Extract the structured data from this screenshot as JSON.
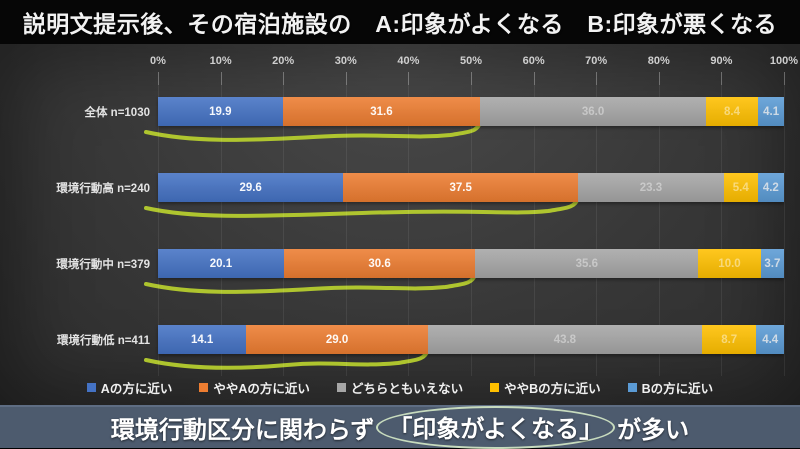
{
  "title": "説明文提示後、その宿泊施設の　A:印象がよくなる　B:印象が悪くなる",
  "chart_data": {
    "type": "bar",
    "orientation": "horizontal",
    "stacked": true,
    "unit": "%",
    "categories": [
      "全体 n=1030",
      "環境行動高 n=240",
      "環境行動中 n=379",
      "環境行動低 n=411"
    ],
    "series": [
      {
        "name": "Aの方に近い",
        "color": "#4472c4",
        "label_color": "rgba(255,255,255,0.95)",
        "values": [
          19.9,
          29.6,
          20.1,
          14.1
        ]
      },
      {
        "name": "ややAの方に近い",
        "color": "#ed7d31",
        "label_color": "rgba(255,255,255,0.95)",
        "values": [
          31.6,
          37.5,
          30.6,
          29.0
        ]
      },
      {
        "name": "どちらともいえない",
        "color": "#a6a6a6",
        "label_color": "rgba(255,255,255,0.40)",
        "values": [
          36.0,
          23.3,
          35.6,
          43.8
        ]
      },
      {
        "name": "ややBの方に近い",
        "color": "#ffc000",
        "label_color": "rgba(255,255,255,0.45)",
        "values": [
          8.4,
          5.4,
          10.0,
          8.7
        ]
      },
      {
        "name": "Bの方に近い",
        "color": "#5b9bd5",
        "label_color": "rgba(235,235,235,0.80)",
        "values": [
          4.1,
          4.2,
          3.7,
          4.4
        ]
      }
    ],
    "x_axis": {
      "ticks": [
        "0%",
        "10%",
        "20%",
        "30%",
        "40%",
        "50%",
        "60%",
        "70%",
        "80%",
        "90%",
        "100%"
      ],
      "range": [
        0,
        100
      ],
      "grid": true
    },
    "legend_position": "bottom",
    "annotations": {
      "underline_color": "#b5cc2e",
      "underline_meaning": "yellow-green swoosh underlining the A-side total (Aの方に近い + ややAの方に近い) of each row"
    }
  },
  "caption": {
    "pre": "環境行動区分に関わらず",
    "highlight": "「印象がよくなる」",
    "post": "が多い",
    "bar_color": "#4d5b6e",
    "oval_color": "#d5e9c7"
  }
}
